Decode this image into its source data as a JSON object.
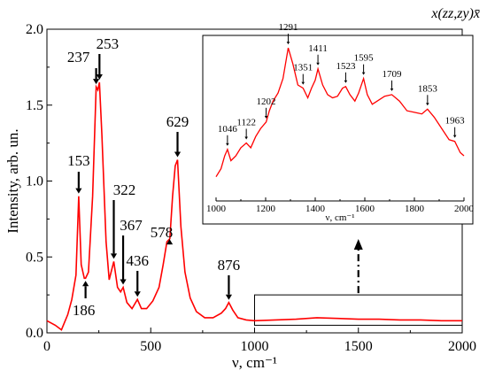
{
  "chart_data": [
    {
      "type": "line",
      "title": "x(zz,zy)x̄",
      "xlabel": "ν, cm⁻¹",
      "ylabel": "Intensity, arb. un.",
      "xlim": [
        0,
        2000
      ],
      "ylim": [
        0,
        2.0
      ],
      "xticks": [
        "0",
        "500",
        "1000",
        "1500",
        "2000"
      ],
      "yticks": [
        "0.0",
        "0.5",
        "1.0",
        "1.5",
        "2.0"
      ],
      "grid": false,
      "color": "#ff0000",
      "series": [
        {
          "x": [
            0,
            40,
            70,
            100,
            120,
            140,
            153,
            165,
            180,
            186,
            200,
            220,
            237,
            245,
            253,
            265,
            285,
            300,
            322,
            340,
            355,
            367,
            385,
            410,
            436,
            455,
            480,
            510,
            540,
            560,
            578,
            592,
            605,
            618,
            629,
            645,
            665,
            690,
            720,
            760,
            800,
            840,
            860,
            876,
            895,
            920,
            960,
            1000,
            1100,
            1200,
            1300,
            1400,
            1500,
            1600,
            1700,
            1800,
            1900,
            2000
          ],
          "y": [
            0.08,
            0.05,
            0.02,
            0.12,
            0.22,
            0.38,
            0.9,
            0.45,
            0.36,
            0.36,
            0.4,
            0.9,
            1.62,
            1.6,
            1.65,
            1.3,
            0.6,
            0.35,
            0.47,
            0.3,
            0.27,
            0.3,
            0.2,
            0.16,
            0.22,
            0.16,
            0.16,
            0.21,
            0.3,
            0.45,
            0.6,
            0.62,
            0.9,
            1.1,
            1.14,
            0.7,
            0.4,
            0.23,
            0.14,
            0.1,
            0.1,
            0.13,
            0.16,
            0.2,
            0.15,
            0.1,
            0.085,
            0.08,
            0.085,
            0.09,
            0.1,
            0.095,
            0.09,
            0.09,
            0.085,
            0.085,
            0.08,
            0.08
          ]
        }
      ],
      "peak_labels": [
        {
          "label": "153",
          "x": 153,
          "y": 0.9
        },
        {
          "label": "186",
          "x": 186,
          "y": 0.36
        },
        {
          "label": "237",
          "x": 237,
          "y": 1.62
        },
        {
          "label": "253",
          "x": 253,
          "y": 1.65
        },
        {
          "label": "322",
          "x": 322,
          "y": 0.47
        },
        {
          "label": "367",
          "x": 367,
          "y": 0.3
        },
        {
          "label": "436",
          "x": 436,
          "y": 0.22
        },
        {
          "label": "578",
          "x": 578,
          "y": 0.6
        },
        {
          "label": "629",
          "x": 629,
          "y": 1.14
        },
        {
          "label": "876",
          "x": 876,
          "y": 0.2
        }
      ],
      "zoom_box": {
        "xlim": [
          1000,
          2000
        ],
        "ylim": [
          0.05,
          0.25
        ]
      }
    },
    {
      "type": "line",
      "xlabel": "ν, cm⁻¹",
      "ylabel": "",
      "xlim": [
        1000,
        2000
      ],
      "ylim": [
        0,
        1
      ],
      "xticks": [
        "1000",
        "1200",
        "1400",
        "1600",
        "1800",
        "2000"
      ],
      "grid": false,
      "color": "#ff0000",
      "series": [
        {
          "x": [
            1000,
            1020,
            1035,
            1046,
            1060,
            1080,
            1100,
            1122,
            1140,
            1160,
            1180,
            1202,
            1215,
            1230,
            1250,
            1270,
            1291,
            1310,
            1330,
            1351,
            1370,
            1385,
            1400,
            1411,
            1430,
            1450,
            1470,
            1490,
            1510,
            1523,
            1540,
            1560,
            1575,
            1595,
            1610,
            1630,
            1650,
            1680,
            1709,
            1740,
            1770,
            1800,
            1830,
            1853,
            1880,
            1910,
            1940,
            1963,
            1985,
            2000
          ],
          "y": [
            0.15,
            0.2,
            0.28,
            0.32,
            0.25,
            0.28,
            0.33,
            0.36,
            0.33,
            0.4,
            0.45,
            0.49,
            0.56,
            0.62,
            0.67,
            0.76,
            0.95,
            0.85,
            0.72,
            0.7,
            0.64,
            0.7,
            0.75,
            0.82,
            0.72,
            0.66,
            0.64,
            0.65,
            0.7,
            0.71,
            0.66,
            0.62,
            0.67,
            0.76,
            0.66,
            0.6,
            0.62,
            0.65,
            0.66,
            0.62,
            0.56,
            0.55,
            0.54,
            0.57,
            0.52,
            0.45,
            0.38,
            0.37,
            0.3,
            0.28
          ]
        }
      ],
      "peak_labels": [
        {
          "label": "1046",
          "x": 1046,
          "y": 0.32
        },
        {
          "label": "1122",
          "x": 1122,
          "y": 0.36
        },
        {
          "label": "1202",
          "x": 1202,
          "y": 0.49
        },
        {
          "label": "1291",
          "x": 1291,
          "y": 0.95
        },
        {
          "label": "1351",
          "x": 1351,
          "y": 0.7
        },
        {
          "label": "1411",
          "x": 1411,
          "y": 0.82
        },
        {
          "label": "1523",
          "x": 1523,
          "y": 0.71
        },
        {
          "label": "1595",
          "x": 1595,
          "y": 0.76
        },
        {
          "label": "1709",
          "x": 1709,
          "y": 0.66
        },
        {
          "label": "1853",
          "x": 1853,
          "y": 0.57
        },
        {
          "label": "1963",
          "x": 1963,
          "y": 0.37
        }
      ]
    }
  ]
}
